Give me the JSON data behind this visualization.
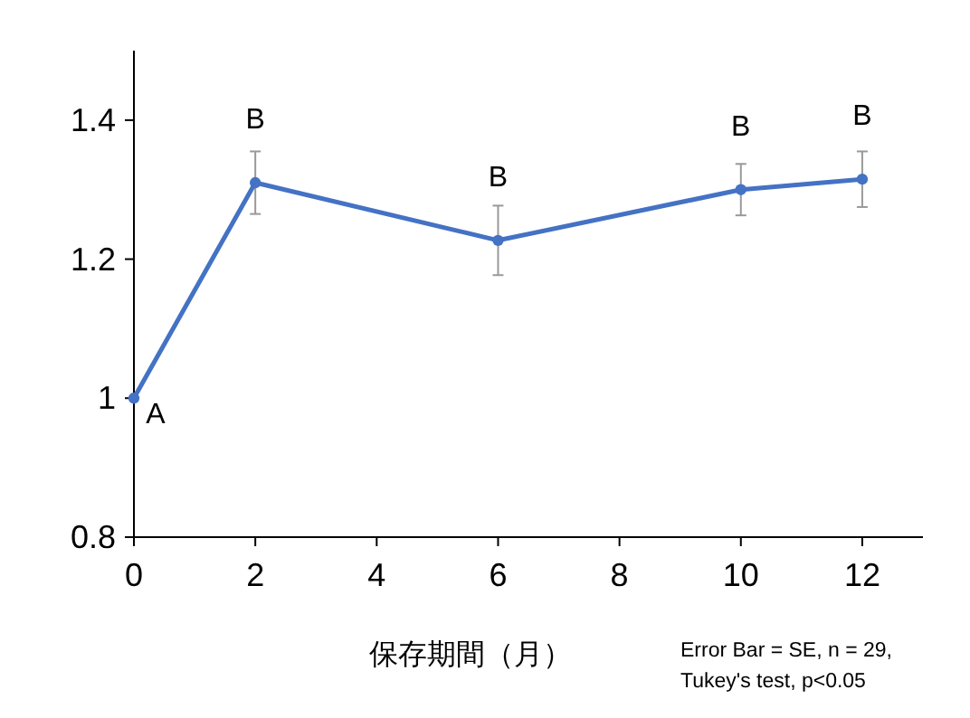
{
  "chart_data": {
    "type": "line",
    "xlabel": "保存期間（月）",
    "x": [
      0,
      2,
      6,
      10,
      12
    ],
    "series": [
      {
        "color": "#4472c4",
        "values": [
          1,
          1.31,
          1.227,
          1.3,
          1.315
        ],
        "errors": [
          null,
          0.045,
          0.05,
          0.037,
          0.04
        ]
      }
    ],
    "xlim": [
      0,
      13
    ],
    "xticks": [
      0,
      2,
      4,
      6,
      8,
      10,
      12
    ],
    "ylim": [
      0.8,
      1.5
    ],
    "yticks": [
      0.8,
      1,
      1.2,
      1.4
    ],
    "marker": "circle",
    "line_style": "solid",
    "grid": false,
    "annotations": [
      {
        "text": "A",
        "x": 0,
        "y": 1
      },
      {
        "text": "B",
        "x": 2,
        "y": 1.31
      },
      {
        "text": "B",
        "x": 6,
        "y": 1.227
      },
      {
        "text": "B",
        "x": 10,
        "y": 1.3
      },
      {
        "text": "B",
        "x": 12,
        "y": 1.315
      },
      "Error Bar = SE, n = 29,\nTukey's test, p<0.05"
    ]
  }
}
